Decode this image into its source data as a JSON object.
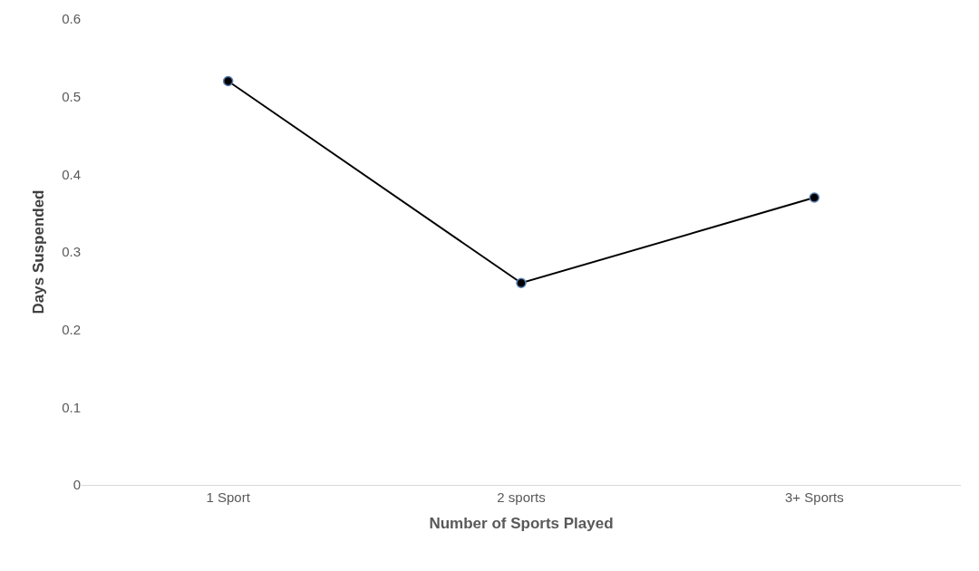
{
  "chart_data": {
    "type": "line",
    "xlabel": "Number of Sports Played",
    "ylabel": "Days Suspended",
    "categories": [
      "1 Sport",
      "2 sports",
      "3+ Sports"
    ],
    "values": [
      0.52,
      0.26,
      0.37
    ],
    "color": "#000000",
    "ylim": [
      0,
      0.6
    ],
    "yticks": [
      0,
      0.1,
      0.2,
      0.3,
      0.4,
      0.5,
      0.6
    ],
    "marker": "circle",
    "line_style": "solid"
  }
}
